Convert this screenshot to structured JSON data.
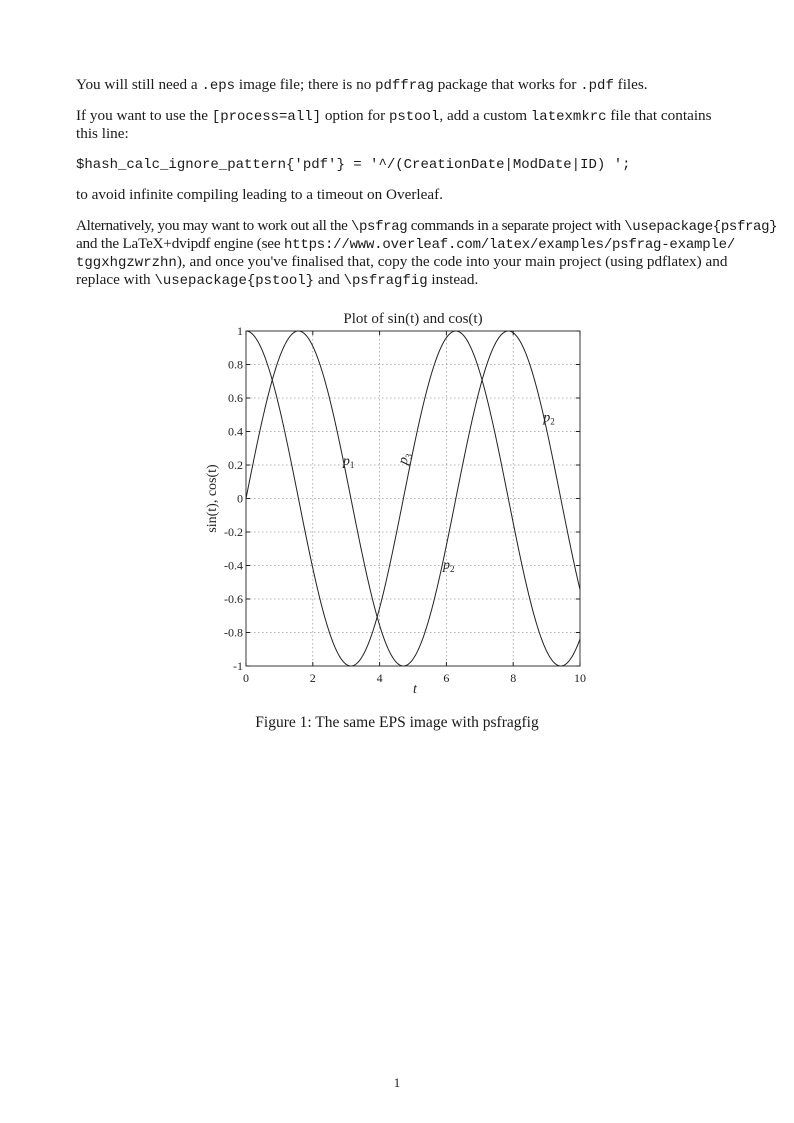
{
  "paragraphs": {
    "p1": [
      "You will still need a ",
      ".eps",
      " image file; there is no ",
      "pdffrag",
      " package that works for ",
      ".pdf",
      " files."
    ],
    "p2_line1": [
      "If you want to use the ",
      "[process=all]",
      " option for ",
      "pstool",
      ", add a custom ",
      "latexmkrc",
      " file that contains"
    ],
    "p2_line2": "this line:",
    "code_line": "$hash_calc_ignore_pattern{'pdf'} = '^/(CreationDate|ModDate|ID) ';",
    "p3": "to avoid infinite compiling leading to a timeout on Overleaf.",
    "p4_line1": [
      "Alternatively, you may want to work out all the ",
      "\\psfrag",
      " commands in a separate project with ",
      "\\usepackage{psfrag}"
    ],
    "p4_line2": [
      "and the LaTeX+dvipdf engine (see ",
      "https://www.overleaf.com/latex/examples/psfrag-example/"
    ],
    "p4_line3": [
      "tggxhgzwrzhn",
      "), and once you've finalised that, copy the code into your main project (using pdflatex) and"
    ],
    "p4_line4": [
      "replace with ",
      "\\usepackage{pstool}",
      " and ",
      "\\psfragfig",
      " instead."
    ]
  },
  "chart_data": {
    "type": "line",
    "title": "Plot of sin(t) and cos(t)",
    "xlabel": "t",
    "ylabel": "sin(t), cos(t)",
    "xlim": [
      0,
      10
    ],
    "ylim": [
      -1,
      1
    ],
    "xticks": [
      "0",
      "2",
      "4",
      "6",
      "8",
      "10"
    ],
    "yticks": [
      "1",
      "0.8",
      "0.6",
      "0.4",
      "0.2",
      "0",
      "-0.2",
      "-0.4",
      "-0.6",
      "-0.8",
      "-1"
    ],
    "grid": true,
    "x": [
      0,
      1,
      2,
      3,
      4,
      5,
      6,
      7,
      8,
      9,
      10
    ],
    "series": [
      {
        "function": "sin",
        "values": [
          0,
          0.841,
          0.909,
          0.141,
          -0.757,
          -0.959,
          -0.279,
          0.657,
          0.989,
          0.412,
          -0.544
        ]
      },
      {
        "function": "cos",
        "values": [
          1,
          0.54,
          -0.416,
          -0.99,
          -0.654,
          0.284,
          0.96,
          0.754,
          -0.146,
          -0.911,
          -0.839
        ]
      }
    ],
    "annotations": [
      {
        "text": "p",
        "sub": "1",
        "x": 2.9,
        "y": 0.2,
        "rotate": 0
      },
      {
        "text": "p",
        "sub": "3",
        "x": 4.8,
        "y": 0.2,
        "rotate": -75
      },
      {
        "text": "p",
        "sub": "2",
        "x": 5.9,
        "y": -0.42,
        "rotate": 0
      },
      {
        "text": "p",
        "sub": "2",
        "x": 8.9,
        "y": 0.46,
        "rotate": 0
      }
    ],
    "line_color": "#222222",
    "grid_color": "#9a9a9a"
  },
  "caption": "Figure 1: The same EPS image with psfragfig",
  "page_number": "1"
}
